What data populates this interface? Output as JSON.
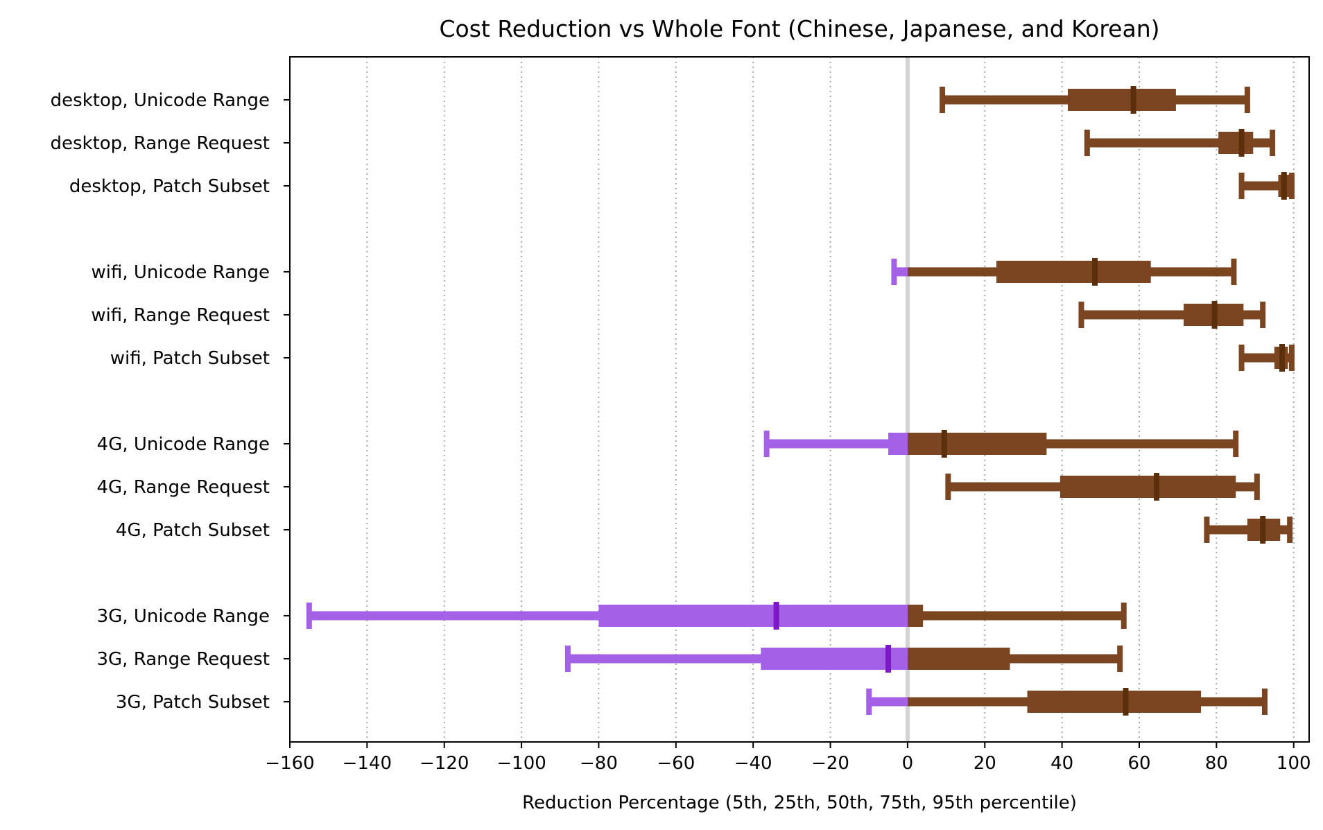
{
  "chart_data": {
    "type": "box",
    "title": "Cost Reduction vs Whole Font (Chinese, Japanese, and Korean)",
    "xlabel": "Reduction Percentage  (5th, 25th, 50th, 75th, 95th percentile)",
    "ylabel": "",
    "xlim": [
      -160,
      104
    ],
    "xticks": [
      -160,
      -140,
      -120,
      -100,
      -80,
      -60,
      -40,
      -20,
      0,
      20,
      40,
      60,
      80,
      100
    ],
    "xtick_labels": [
      "−160",
      "−140",
      "−120",
      "−100",
      "−80",
      "−60",
      "−40",
      "−20",
      "0",
      "20",
      "40",
      "60",
      "80",
      "100"
    ],
    "grid": "vertical dotted",
    "reference_line": 0,
    "colors": {
      "positive": "#7a4520",
      "negative": "#a461e8",
      "median_positive": "#5b2f0c",
      "median_negative": "#7c18c8",
      "zero_line": "#d3d3d3"
    },
    "rows": [
      {
        "label": "desktop, Unicode Range",
        "p5": 9,
        "p25": 41.5,
        "p50": 58.5,
        "p75": 69.5,
        "p95": 88
      },
      {
        "label": "desktop, Range Request",
        "p5": 46.5,
        "p25": 80.5,
        "p50": 86.5,
        "p75": 89.5,
        "p95": 94.5
      },
      {
        "label": "desktop, Patch Subset",
        "p5": 86.5,
        "p25": 96,
        "p50": 97.5,
        "p75": 99,
        "p95": 99.5
      },
      {
        "label": "wifi, Unicode Range",
        "p5": -3.5,
        "p25": 23,
        "p50": 48.5,
        "p75": 63,
        "p95": 84.5
      },
      {
        "label": "wifi, Range Request",
        "p5": 45,
        "p25": 71.5,
        "p50": 79.5,
        "p75": 87,
        "p95": 92
      },
      {
        "label": "wifi, Patch Subset",
        "p5": 86.5,
        "p25": 95,
        "p50": 97,
        "p75": 98.5,
        "p95": 99.5
      },
      {
        "label": "4G, Unicode Range",
        "p5": -36.5,
        "p25": -5,
        "p50": 9.5,
        "p75": 36,
        "p95": 85
      },
      {
        "label": "4G, Range Request",
        "p5": 10.5,
        "p25": 39.5,
        "p50": 64.5,
        "p75": 85,
        "p95": 90.5
      },
      {
        "label": "4G, Patch Subset",
        "p5": 77.5,
        "p25": 88,
        "p50": 92,
        "p75": 96.5,
        "p95": 99
      },
      {
        "label": "3G, Unicode Range",
        "p5": -155,
        "p25": -80,
        "p50": -34,
        "p75": 4,
        "p95": 56
      },
      {
        "label": "3G, Range Request",
        "p5": -88,
        "p25": -38,
        "p50": -5,
        "p75": 26.5,
        "p95": 55
      },
      {
        "label": "3G, Patch Subset",
        "p5": -10,
        "p25": 31,
        "p50": 56.5,
        "p75": 76,
        "p95": 92.5
      }
    ]
  }
}
